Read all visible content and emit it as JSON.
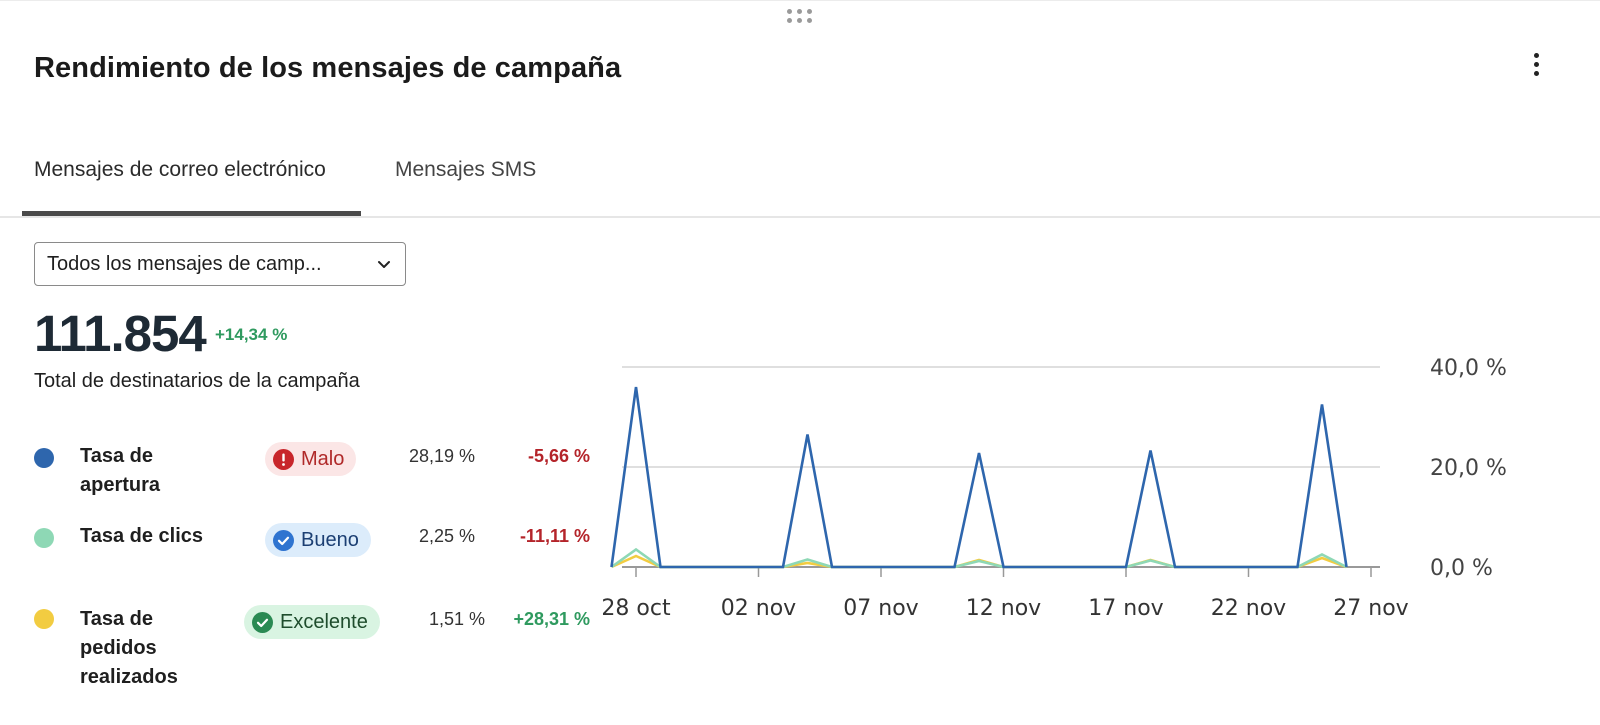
{
  "card": {
    "title": "Rendimiento de los mensajes de campaña"
  },
  "tabs": [
    {
      "label": "Mensajes de correo electrónico",
      "active": true
    },
    {
      "label": "Mensajes SMS",
      "active": false
    }
  ],
  "filter": {
    "selected": "Todos los mensajes de camp..."
  },
  "summary": {
    "value": "111.854",
    "change": "+14,34 %",
    "label": "Total de destinatarios de la campaña"
  },
  "metrics": [
    {
      "name_lines": [
        "Tasa de",
        "apertura"
      ],
      "color": "#2e66ad",
      "badge": "Malo",
      "badge_type": "bad",
      "value": "28,19 %",
      "change": "-5,66 %",
      "change_dir": "neg"
    },
    {
      "name_lines": [
        "Tasa de clics"
      ],
      "color": "#8ed8b5",
      "badge": "Bueno",
      "badge_type": "good",
      "value": "2,25 %",
      "change": "-11,11 %",
      "change_dir": "neg"
    },
    {
      "name_lines": [
        "Tasa de",
        "pedidos",
        "realizados"
      ],
      "color": "#f2cc41",
      "badge": "Excelente",
      "badge_type": "exc",
      "value": "1,51 %",
      "change": "+28,31 %",
      "change_dir": "pos"
    }
  ],
  "chart_data": {
    "type": "line",
    "x_ticks": [
      "28 oct",
      "02 nov",
      "07 nov",
      "12 nov",
      "17 nov",
      "22 nov",
      "27 nov"
    ],
    "y_ticks": [
      "0,0 %",
      "20,0 %",
      "40,0 %"
    ],
    "y_axis_position": "right",
    "ylim": [
      0,
      40
    ],
    "grid": true,
    "x": [
      "27 oct",
      "28 oct",
      "29 oct",
      "03 nov",
      "04 nov",
      "05 nov",
      "10 nov",
      "11 nov",
      "12 nov",
      "17 nov",
      "18 nov",
      "19 nov",
      "24 nov",
      "25 nov",
      "26 nov"
    ],
    "series": [
      {
        "color": "#2e66ad",
        "values": [
          0,
          36,
          0,
          0,
          26.5,
          0,
          0,
          22.8,
          0,
          0,
          23.3,
          0,
          0,
          32.5,
          0
        ]
      },
      {
        "color": "#8ed8b5",
        "values": [
          0,
          3.5,
          0,
          0,
          1.5,
          0,
          0,
          1.2,
          0,
          0,
          1.3,
          0,
          0,
          2.5,
          0
        ]
      },
      {
        "color": "#f2cc41",
        "values": [
          0,
          2.2,
          0,
          0,
          0.8,
          0,
          0,
          1.4,
          0,
          0,
          1.4,
          0,
          0,
          1.8,
          0
        ]
      }
    ]
  }
}
